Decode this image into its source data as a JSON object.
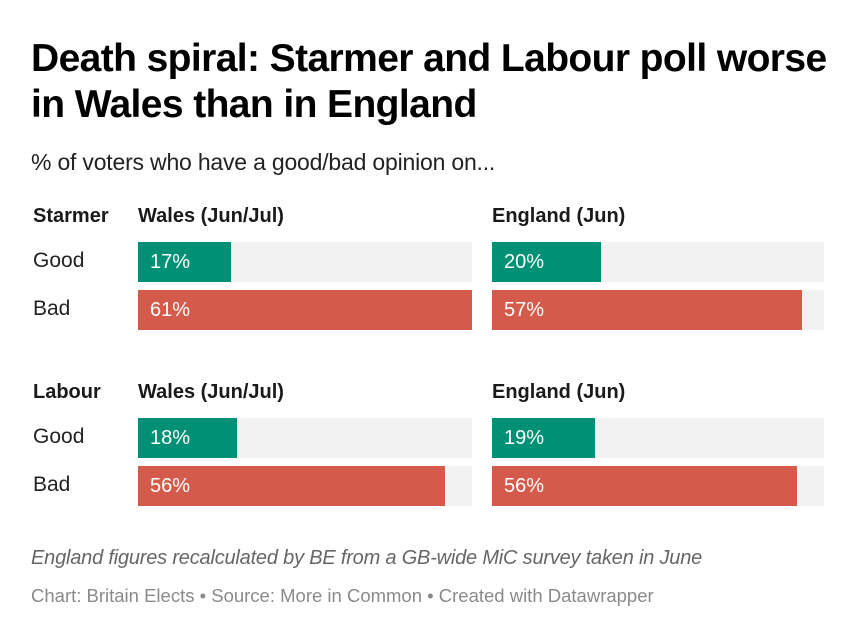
{
  "header": {
    "title": "Death spiral: Starmer and Labour poll worse in Wales than in England",
    "subtitle": "% of voters who have a good/bad opinion on..."
  },
  "footer": {
    "note": "England figures recalculated by BE from a GB-wide MiC survey taken in June",
    "credit": "Chart: Britain Elects • Source: More in Common • Created with Datawrapper"
  },
  "colors": {
    "good": "#009076",
    "bad": "#d45b4b",
    "track": "#f2f2f2"
  },
  "chart_data": {
    "type": "bar",
    "title": "Death spiral: Starmer and Labour poll worse in Wales than in England",
    "subtitle": "% of voters who have a good/bad opinion on...",
    "unit": "%",
    "scale_max": 61,
    "categories": [
      "Good",
      "Bad"
    ],
    "groups": [
      {
        "name": "Starmer",
        "panels": [
          {
            "name": "Wales (Jun/Jul)",
            "values": [
              17,
              61
            ],
            "labels": [
              "17%",
              "61%"
            ]
          },
          {
            "name": "England (Jun)",
            "values": [
              20,
              57
            ],
            "labels": [
              "20%",
              "57%"
            ]
          }
        ]
      },
      {
        "name": "Labour",
        "panels": [
          {
            "name": "Wales (Jun/Jul)",
            "values": [
              18,
              56
            ],
            "labels": [
              "18%",
              "56%"
            ]
          },
          {
            "name": "England (Jun)",
            "values": [
              19,
              56
            ],
            "labels": [
              "19%",
              "56%"
            ]
          }
        ]
      }
    ]
  }
}
